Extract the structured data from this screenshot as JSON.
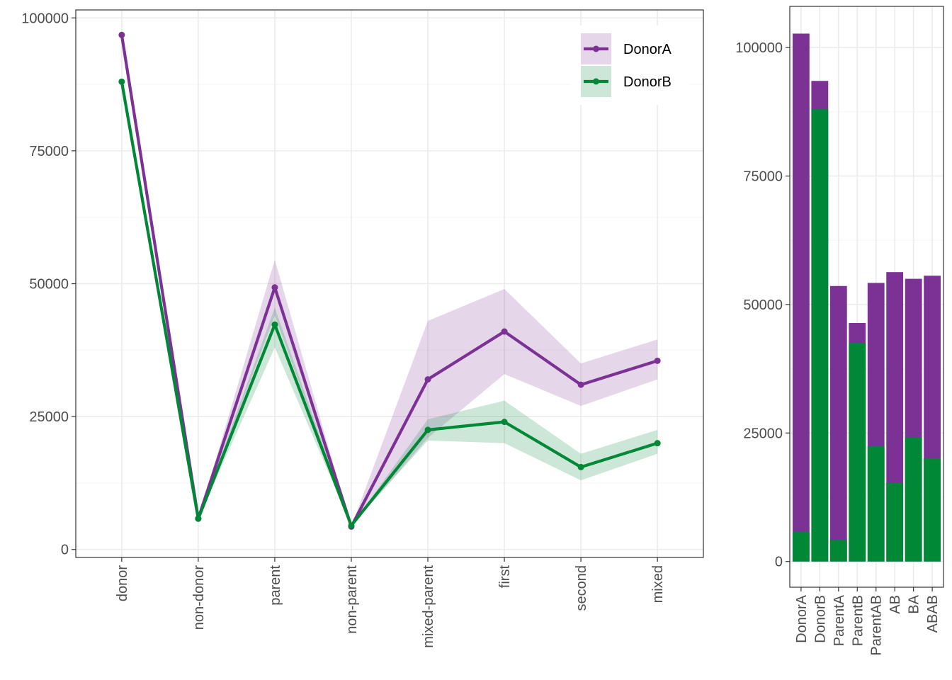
{
  "colors": {
    "donorA": "#7B3294",
    "donorB": "#008837",
    "grid_major": "#EBEBEB",
    "grid_minor": "#F5F5F5",
    "panel_border": "#333333",
    "tick_text": "#4D4D4D"
  },
  "chart_data": [
    {
      "type": "line",
      "title": "",
      "xlabel": "",
      "ylabel": "",
      "categories": [
        "donor",
        "non-donor",
        "parent",
        "non-parent",
        "mixed-parent",
        "first",
        "second",
        "mixed"
      ],
      "yticks": [
        0,
        25000,
        50000,
        75000,
        100000
      ],
      "yticklabels": [
        "0",
        "25000",
        "50000",
        "75000",
        "100000"
      ],
      "ylim": [
        -1500,
        101500
      ],
      "grid": true,
      "legend": {
        "placement": "top-right",
        "entries": [
          "DonorA",
          "DonorB"
        ]
      },
      "series": [
        {
          "name": "DonorA",
          "color_key": "donorA",
          "values": [
            96800,
            5800,
            49300,
            4300,
            32000,
            41000,
            31000,
            35500
          ],
          "band_lower": [
            96800,
            5800,
            44000,
            4300,
            21000,
            33000,
            27000,
            32000
          ],
          "band_upper": [
            96800,
            5800,
            54500,
            4300,
            43000,
            49000,
            35000,
            39500
          ]
        },
        {
          "name": "DonorB",
          "color_key": "donorB",
          "values": [
            88000,
            5800,
            42300,
            4500,
            22500,
            24000,
            15500,
            20000
          ],
          "band_lower": [
            88000,
            5800,
            38000,
            4500,
            20500,
            20000,
            13000,
            18000
          ],
          "band_upper": [
            88000,
            5800,
            45500,
            4500,
            24500,
            28000,
            18000,
            22500
          ]
        }
      ]
    },
    {
      "type": "bar",
      "stacked": "overlay",
      "title": "",
      "xlabel": "",
      "ylabel": "",
      "categories": [
        "DonorA",
        "DonorB",
        "ParentA",
        "ParentB",
        "ParentAB",
        "AB",
        "BA",
        "ABAB"
      ],
      "yticks": [
        0,
        25000,
        50000,
        75000,
        100000
      ],
      "yticklabels": [
        "0",
        "25000",
        "50000",
        "75000",
        "100000"
      ],
      "ylim": [
        -5000,
        108000
      ],
      "grid": true,
      "series": [
        {
          "name": "",
          "color_key": "donorA",
          "values": [
            102700,
            93500,
            53600,
            46400,
            54200,
            56300,
            55000,
            55600
          ]
        },
        {
          "name": "",
          "color_key": "donorB",
          "values": [
            5800,
            88000,
            4200,
            42500,
            22400,
            15300,
            24100,
            20100
          ]
        }
      ]
    }
  ]
}
